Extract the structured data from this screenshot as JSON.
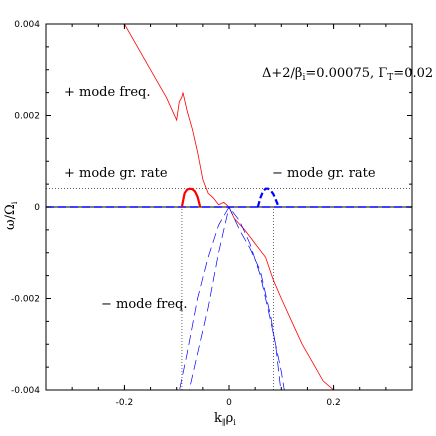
{
  "chart_data": {
    "type": "line",
    "xlim": [
      -0.35,
      0.35
    ],
    "ylim": [
      -0.004,
      0.004
    ],
    "x_ticks": [
      -0.2,
      0,
      0.2
    ],
    "x_tick_labels": [
      "-0.2",
      "0",
      "0.2"
    ],
    "y_ticks": [
      -0.004,
      -0.002,
      0,
      0.002,
      0.004
    ],
    "y_tick_labels": [
      "-0.004",
      "-0.002",
      "0",
      "0.002",
      "0.004"
    ],
    "xlabel": {
      "main": "k",
      "sub": "∥",
      "main2": "ρ",
      "sub2": "i"
    },
    "ylabel": {
      "main": "ω/Ω",
      "sub": "i"
    },
    "grid": false,
    "annotations": {
      "params": "Δ+2/β",
      "params_sub": "i",
      "params_rest": "=0.00075, Γ",
      "params_sub2": "T",
      "params_rest2": "=0.02",
      "plus_freq": "+ mode freq.",
      "plus_gr": "+ mode gr. rate",
      "minus_gr": "− mode gr. rate",
      "minus_freq": "− mode freq."
    },
    "reference_lines": {
      "horizontal_dotted_y": 0.0004,
      "vertical_dotted_x": [
        -0.09,
        0.085
      ]
    },
    "series": [
      {
        "color": "#ff0000",
        "style": "solid",
        "x": [
          -0.2,
          -0.18,
          -0.16,
          -0.14,
          -0.12,
          -0.1,
          -0.095,
          -0.09,
          -0.088,
          -0.08,
          -0.07,
          -0.06,
          -0.05,
          -0.04,
          -0.03,
          -0.02,
          -0.01,
          0.0,
          0.01,
          0.03,
          0.05,
          0.07,
          0.085,
          0.1,
          0.12,
          0.14,
          0.16,
          0.18,
          0.2
        ],
        "y": [
          0.004,
          0.0036,
          0.0032,
          0.0028,
          0.0024,
          0.0019,
          0.0023,
          0.0024,
          0.0025,
          0.0021,
          0.0017,
          0.0012,
          0.0006,
          0.0003,
          0.0002,
          5e-05,
          0.0001,
          0.0,
          -0.00025,
          -0.0005,
          -0.0008,
          -0.0011,
          -0.0016,
          -0.002,
          -0.0025,
          -0.003,
          -0.0034,
          -0.0038,
          -0.004
        ]
      },
      {
        "color": "#ff0000",
        "style": "solid-thick",
        "x": [
          -0.09,
          -0.085,
          -0.08,
          -0.075,
          -0.07,
          -0.065,
          -0.06,
          -0.055
        ],
        "y": [
          0.0,
          0.0003,
          0.00038,
          0.0004,
          0.00039,
          0.00034,
          0.00022,
          0.0
        ]
      },
      {
        "color": "#0000ff",
        "style": "dashed-thick",
        "x": [
          0.055,
          0.06,
          0.065,
          0.07,
          0.075,
          0.08,
          0.085,
          0.09,
          0.095
        ],
        "y": [
          0.0,
          0.0002,
          0.00034,
          0.0004,
          0.0004,
          0.00036,
          0.00028,
          0.00014,
          0.0
        ]
      },
      {
        "color": "#0000ff",
        "style": "dashed",
        "x": [
          -0.1,
          -0.08,
          -0.06,
          -0.04,
          -0.02,
          0.0,
          0.02,
          0.04,
          0.06,
          0.08,
          0.1,
          0.11
        ],
        "y": [
          -0.0043,
          -0.0032,
          -0.002,
          -0.0011,
          -0.0004,
          0.0,
          -0.0003,
          -0.0008,
          -0.0015,
          -0.0025,
          -0.0036,
          -0.0043
        ]
      },
      {
        "color": "#0000ff",
        "style": "dashed",
        "x": [
          -0.08,
          -0.04,
          -0.02,
          0.0,
          0.02,
          0.04,
          0.06,
          0.08,
          0.09,
          0.1
        ],
        "y": [
          -0.0042,
          -0.0022,
          -0.001,
          0.0,
          -0.0005,
          -0.0009,
          -0.0014,
          -0.0024,
          -0.0031,
          -0.0041
        ]
      }
    ]
  }
}
